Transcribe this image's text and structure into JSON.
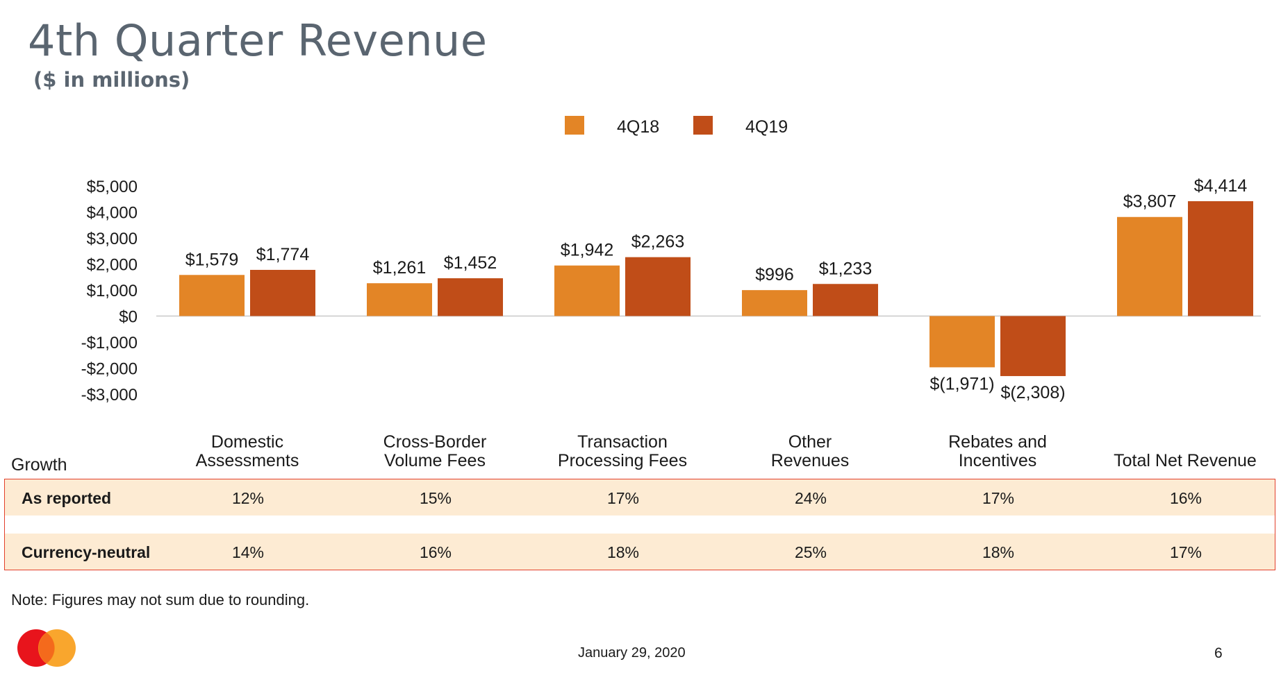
{
  "title": "4th Quarter Revenue",
  "subtitle": "($ in millions)",
  "colors": {
    "q18": "#e38526",
    "q19": "#c04d18",
    "axis": "#c8c8c8",
    "row_bg": "#fdebd3",
    "border": "#e23f2b"
  },
  "chart_data": {
    "type": "bar",
    "title": "4th Quarter Revenue",
    "subtitle": "($ in millions)",
    "categories": [
      "Domestic Assessments",
      "Cross-Border Volume Fees",
      "Transaction Processing Fees",
      "Other Revenues",
      "Rebates and Incentives",
      "Total Net Revenue"
    ],
    "series": [
      {
        "name": "4Q18",
        "color": "#e38526",
        "values": [
          1579,
          1261,
          1942,
          996,
          -1971,
          3807
        ],
        "labels": [
          "$1,579",
          "$1,261",
          "$1,942",
          "$996",
          "$(1,971)",
          "$3,807"
        ]
      },
      {
        "name": "4Q19",
        "color": "#c04d18",
        "values": [
          1774,
          1452,
          2263,
          1233,
          -2308,
          4414
        ],
        "labels": [
          "$1,774",
          "$1,452",
          "$2,263",
          "$1,233",
          "$(2,308)",
          "$4,414"
        ]
      }
    ],
    "ylim": [
      -3000,
      5000
    ],
    "yticks": [
      5000,
      4000,
      3000,
      2000,
      1000,
      0,
      -1000,
      -2000,
      -3000
    ],
    "ytick_labels": [
      "$5,000",
      "$4,000",
      "$3,000",
      "$2,000",
      "$1,000",
      "$0",
      "-$1,000",
      "-$2,000",
      "-$3,000"
    ],
    "legend": "top-center",
    "grid": false
  },
  "growth": {
    "header": "Growth",
    "category_labels": [
      "Domestic\nAssessments",
      "Cross-Border\nVolume Fees",
      "Transaction\nProcessing Fees",
      "Other\nRevenues",
      "Rebates and\nIncentives",
      "Total Net Revenue"
    ],
    "rows": [
      {
        "label": "As reported",
        "values": [
          "12%",
          "15%",
          "17%",
          "24%",
          "17%",
          "16%"
        ]
      },
      {
        "label": "Currency-neutral",
        "values": [
          "14%",
          "16%",
          "18%",
          "25%",
          "18%",
          "17%"
        ]
      }
    ]
  },
  "note": "Note: Figures may not sum due to rounding.",
  "footer": {
    "date": "January 29, 2020",
    "page": "6"
  },
  "logo_icon": "mastercard-logo-icon"
}
